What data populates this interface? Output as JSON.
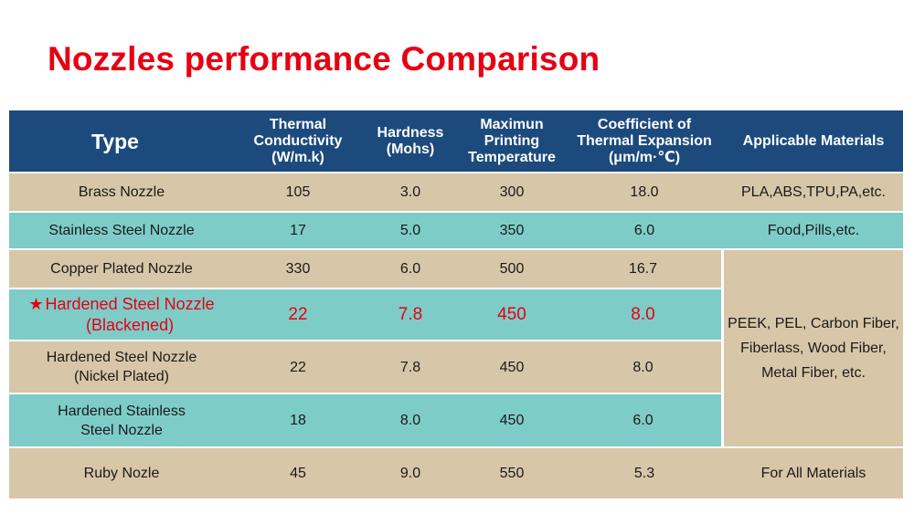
{
  "title": "Nozzles performance Comparison",
  "colors": {
    "title": "#e60012",
    "header_bg": "#1c4a7d",
    "row_tan": "#d8c6a8",
    "row_teal": "#7eccc8",
    "highlight": "#e60012"
  },
  "headers": {
    "type": "Type",
    "thermal": "Thermal Conductivity\n(W/m.k)",
    "hardness": "Hardness\n(Mohs)",
    "temperature": "Maximun\nPrinting\nTemperature",
    "expansion": "Coefficient of\nThermal Expansion\n(μm/m·℃)",
    "materials": "Applicable Materials"
  },
  "rows": [
    {
      "type": "Brass Nozzle",
      "thermal": "105",
      "hardness": "3.0",
      "temperature": "300",
      "expansion": "18.0",
      "materials": "PLA,ABS,TPU,PA,etc."
    },
    {
      "type": "Stainless Steel Nozzle",
      "thermal": "17",
      "hardness": "5.0",
      "temperature": "350",
      "expansion": "6.0",
      "materials": "Food,Pills,etc."
    },
    {
      "type": "Copper Plated Nozzle",
      "thermal": "330",
      "hardness": "6.0",
      "temperature": "500",
      "expansion": "16.7"
    },
    {
      "type": "Hardened Steel Nozzle\n(Blackened)",
      "thermal": "22",
      "hardness": "7.8",
      "temperature": "450",
      "expansion": "8.0",
      "highlight_icon": "star-icon"
    },
    {
      "type": "Hardened Steel Nozzle\n(Nickel Plated)",
      "thermal": "22",
      "hardness": "7.8",
      "temperature": "450",
      "expansion": "8.0"
    },
    {
      "type": "Hardened Stainless\nSteel Nozzle",
      "thermal": "18",
      "hardness": "8.0",
      "temperature": "450",
      "expansion": "6.0"
    },
    {
      "type": "Ruby Nozle",
      "thermal": "45",
      "hardness": "9.0",
      "temperature": "550",
      "expansion": "5.3",
      "materials": "For All Materials"
    }
  ],
  "merged_materials": "PEEK, PEL, Carbon Fiber,\nFiberlass, Wood Fiber,\nMetal Fiber, etc."
}
